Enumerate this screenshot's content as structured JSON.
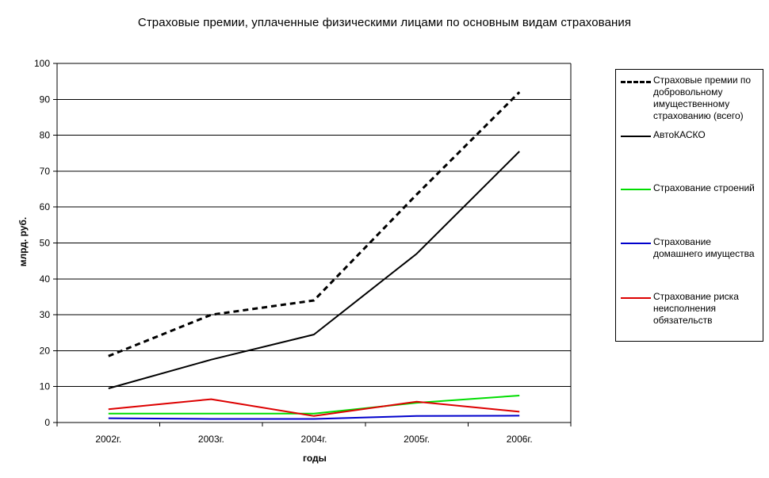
{
  "chart_data": {
    "type": "line",
    "title": "Страховые премии, уплаченные физическими лицами по основным видам страхования",
    "xlabel": "годы",
    "ylabel": "млрд. руб.",
    "categories": [
      "2002г.",
      "2003г.",
      "2004г.",
      "2005г.",
      "2006г."
    ],
    "ylim": [
      0,
      100
    ],
    "yticks": [
      "0",
      "10",
      "20",
      "30",
      "40",
      "50",
      "60",
      "70",
      "80",
      "90",
      "100"
    ],
    "grid": true,
    "legend_position": "right",
    "series": [
      {
        "name": "Страховые премии по добровольному имущественному страхованию (всего)",
        "values": [
          18.5,
          30,
          34,
          63.5,
          92
        ],
        "color": "#000000",
        "style": "dashed"
      },
      {
        "name": "АвтоКАСКО",
        "values": [
          9.5,
          17.5,
          24.5,
          47,
          75.5
        ],
        "color": "#000000",
        "style": "solid"
      },
      {
        "name": "Страхование строений",
        "values": [
          2.5,
          2.5,
          2.5,
          5.5,
          7.5
        ],
        "color": "#00dd00",
        "style": "solid"
      },
      {
        "name": "Страхование домашнего имущества",
        "values": [
          1.2,
          1.0,
          1.0,
          1.8,
          1.9
        ],
        "color": "#0000cc",
        "style": "solid"
      },
      {
        "name": "Страхование риска неисполнения обязательств",
        "values": [
          3.7,
          6.5,
          1.8,
          5.8,
          3.0
        ],
        "color": "#dd0000",
        "style": "solid"
      }
    ]
  }
}
